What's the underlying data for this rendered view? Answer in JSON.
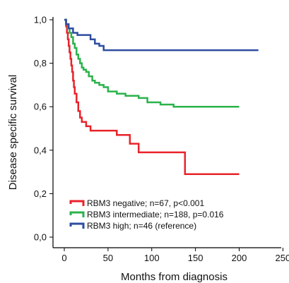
{
  "chart_data": {
    "type": "line",
    "title": "",
    "xlabel": "Months from diagnosis",
    "ylabel": "Disease specific survival",
    "xlim": [
      0,
      250
    ],
    "ylim": [
      0,
      1.0
    ],
    "x_ticks": [
      "0",
      "50",
      "100",
      "150",
      "200",
      "250"
    ],
    "y_ticks": [
      "0,0",
      "0,2",
      "0,4",
      "0,6",
      "0,8",
      "1,0"
    ],
    "legend_position": "lower-left",
    "grid": false,
    "series": [
      {
        "name": "RBM3 negative; n=67, p<0.001",
        "color": "#e8232a",
        "x": [
          0,
          2,
          3,
          4,
          5,
          6,
          7,
          8,
          9,
          10,
          11,
          12,
          14,
          16,
          18,
          20,
          22,
          25,
          30,
          40,
          45,
          60,
          75,
          85,
          110,
          135,
          138,
          200
        ],
        "y": [
          1.0,
          0.97,
          0.94,
          0.91,
          0.88,
          0.85,
          0.82,
          0.79,
          0.76,
          0.72,
          0.69,
          0.66,
          0.62,
          0.58,
          0.55,
          0.53,
          0.53,
          0.51,
          0.49,
          0.49,
          0.49,
          0.47,
          0.43,
          0.39,
          0.39,
          0.39,
          0.29,
          0.29
        ]
      },
      {
        "name": "RBM3 intermediate; n=188, p=0.016",
        "color": "#2bb24c",
        "x": [
          0,
          2,
          4,
          6,
          8,
          10,
          12,
          14,
          16,
          18,
          20,
          22,
          25,
          28,
          32,
          35,
          40,
          45,
          50,
          60,
          70,
          85,
          95,
          110,
          125,
          165,
          200
        ],
        "y": [
          1.0,
          0.98,
          0.96,
          0.94,
          0.92,
          0.89,
          0.87,
          0.84,
          0.82,
          0.8,
          0.78,
          0.77,
          0.76,
          0.74,
          0.72,
          0.71,
          0.7,
          0.69,
          0.67,
          0.66,
          0.65,
          0.64,
          0.62,
          0.61,
          0.6,
          0.6,
          0.6
        ]
      },
      {
        "name": "RBM3 high; n=46 (reference)",
        "color": "#2e4da0",
        "x": [
          0,
          2,
          5,
          10,
          15,
          20,
          30,
          35,
          40,
          45,
          100,
          150,
          222
        ],
        "y": [
          1.0,
          0.98,
          0.96,
          0.94,
          0.93,
          0.93,
          0.91,
          0.89,
          0.88,
          0.86,
          0.86,
          0.86,
          0.86
        ]
      }
    ]
  }
}
